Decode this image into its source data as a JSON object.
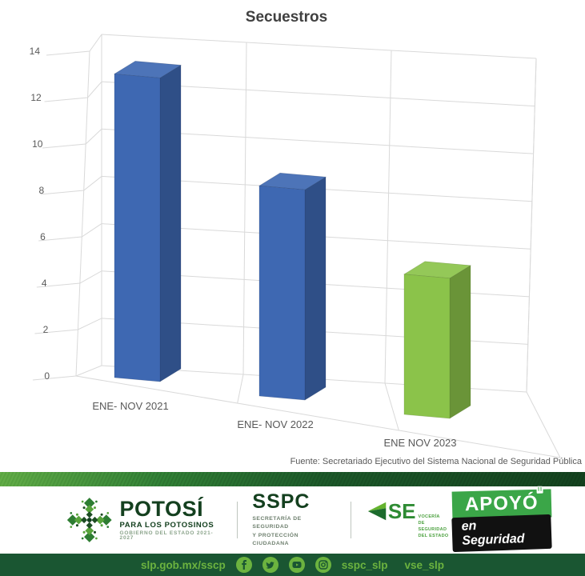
{
  "chart_data": {
    "type": "bar",
    "variant": "3d-column",
    "title": "Secuestros",
    "categories": [
      "ENE- NOV 2021",
      "ENE- NOV 2022",
      "ENE NOV 2023"
    ],
    "values": [
      13,
      9,
      6
    ],
    "ylim": [
      0,
      14
    ],
    "ytick_step": 2,
    "xlabel": "",
    "ylabel": "",
    "grid": true,
    "legend": false,
    "bar_colors": [
      "#3e68b2",
      "#3e68b2",
      "#8bc34a"
    ],
    "grid_color": "#d9d9d9",
    "axis_text_color": "#595959",
    "title_color": "#404040",
    "source_note": "Fuente: Secretariado Ejecutivo del Sistema Nacional de Seguridad Pública"
  },
  "footer": {
    "potosi": {
      "wordmark": "POTOSÍ",
      "tagline": "PARA LOS POTOSINOS",
      "government": "GOBIERNO DEL ESTADO 2021-2027"
    },
    "sspc": {
      "acronym": "SSPC",
      "dept_line1": "SECRETARÍA DE SEGURIDAD",
      "dept_line2": "Y PROTECCIÓN CIUDADANA"
    },
    "se": {
      "acronym": "SE",
      "sub_line1": "VOCERÍA",
      "sub_line2": "DE SEGURIDAD",
      "sub_line3": "DEL ESTADO"
    },
    "apoyo_badge": {
      "line1": "APOYÓ",
      "line2": "en Seguridad",
      "green": "#3ba648",
      "black": "#111111"
    },
    "bottom_bar": {
      "website": "slp.gob.mx/sscp",
      "handle1": "sspc_slp",
      "handle2": "vse_slp",
      "bar_color": "#1a5632",
      "accent_color": "#6cb33f"
    }
  }
}
